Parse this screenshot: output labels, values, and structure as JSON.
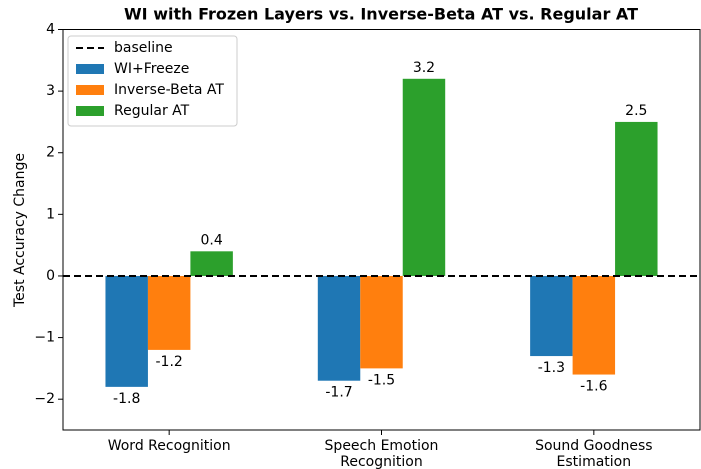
{
  "chart_data": {
    "type": "bar",
    "title": "WI with Frozen Layers vs. Inverse-Beta AT vs. Regular AT",
    "y_label": "Test Accuracy Change",
    "categories": [
      "Word Recognition",
      "Speech Emotion\nRecognition",
      "Sound Goodness\nEstimation"
    ],
    "series": [
      {
        "name": "WI+Freeze",
        "color": "#1f77b4",
        "values": [
          -1.8,
          -1.7,
          -1.3
        ]
      },
      {
        "name": "Inverse-Beta AT",
        "color": "#ff7f0e",
        "values": [
          -1.2,
          -1.5,
          -1.6
        ]
      },
      {
        "name": "Regular AT",
        "color": "#2ca02c",
        "values": [
          0.4,
          3.2,
          2.5
        ]
      }
    ],
    "baseline": {
      "name": "baseline",
      "value": 0,
      "color": "#000000"
    },
    "ylim": [
      -2.5,
      4
    ],
    "yticks": [
      {
        "value": -2,
        "label": "−2"
      },
      {
        "value": -1,
        "label": "−1"
      },
      0,
      1,
      2,
      3,
      4
    ],
    "legend": "upper left"
  }
}
